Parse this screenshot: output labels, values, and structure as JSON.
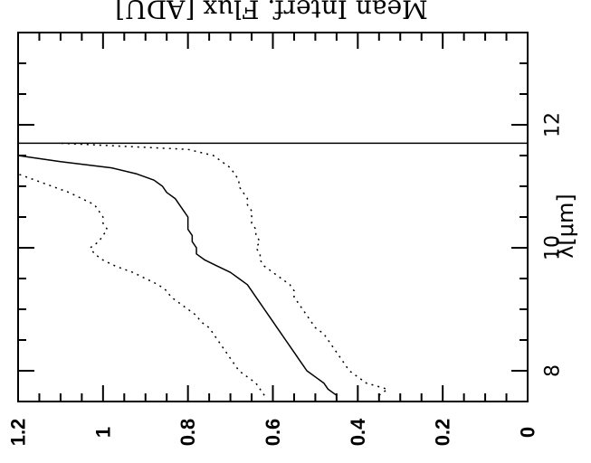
{
  "chart_data": {
    "type": "line",
    "title": "",
    "xlabel": "λ[μm]",
    "ylabel": "Mean Interf. Flux [ADU]",
    "xlim": [
      7.5,
      13.5
    ],
    "ylim": [
      0,
      1.2
    ],
    "x_ticks": [
      "8",
      "10",
      "12"
    ],
    "x_tick_values": [
      8,
      10,
      12
    ],
    "y_ticks": [
      "0",
      "0.2",
      "0.4",
      "0.6",
      "0.8",
      "1",
      "1.2"
    ],
    "y_tick_values": [
      0,
      0.2,
      0.4,
      0.6,
      0.8,
      1.0,
      1.2
    ],
    "grid": false,
    "orientation": "rotated 90 degrees clockwise",
    "vertical_line_x": 11.7,
    "series": [
      {
        "style": "solid",
        "points": [
          [
            7.6,
            0.45
          ],
          [
            7.7,
            0.47
          ],
          [
            7.8,
            0.48
          ],
          [
            7.9,
            0.5
          ],
          [
            8.0,
            0.52
          ],
          [
            8.1,
            0.53
          ],
          [
            8.2,
            0.54
          ],
          [
            8.3,
            0.55
          ],
          [
            8.4,
            0.56
          ],
          [
            8.5,
            0.57
          ],
          [
            8.6,
            0.58
          ],
          [
            8.7,
            0.59
          ],
          [
            8.8,
            0.6
          ],
          [
            8.9,
            0.61
          ],
          [
            9.0,
            0.62
          ],
          [
            9.1,
            0.63
          ],
          [
            9.2,
            0.64
          ],
          [
            9.3,
            0.65
          ],
          [
            9.4,
            0.66
          ],
          [
            9.5,
            0.68
          ],
          [
            9.6,
            0.7
          ],
          [
            9.7,
            0.73
          ],
          [
            9.8,
            0.76
          ],
          [
            9.9,
            0.78
          ],
          [
            10.0,
            0.78
          ],
          [
            10.1,
            0.79
          ],
          [
            10.2,
            0.79
          ],
          [
            10.3,
            0.8
          ],
          [
            10.4,
            0.8
          ],
          [
            10.5,
            0.8
          ],
          [
            10.6,
            0.81
          ],
          [
            10.7,
            0.82
          ],
          [
            10.8,
            0.83
          ],
          [
            10.9,
            0.85
          ],
          [
            11.0,
            0.86
          ],
          [
            11.1,
            0.88
          ],
          [
            11.2,
            0.92
          ],
          [
            11.3,
            0.98
          ],
          [
            11.4,
            1.1
          ],
          [
            11.5,
            1.2
          ]
        ]
      },
      {
        "style": "dotted",
        "points": [
          [
            7.6,
            0.35
          ],
          [
            7.7,
            0.33
          ],
          [
            7.8,
            0.38
          ],
          [
            7.9,
            0.4
          ],
          [
            8.0,
            0.42
          ],
          [
            8.1,
            0.43
          ],
          [
            8.2,
            0.44
          ],
          [
            8.3,
            0.45
          ],
          [
            8.4,
            0.46
          ],
          [
            8.5,
            0.47
          ],
          [
            8.6,
            0.48
          ],
          [
            8.7,
            0.5
          ],
          [
            8.8,
            0.51
          ],
          [
            8.9,
            0.52
          ],
          [
            9.0,
            0.53
          ],
          [
            9.1,
            0.54
          ],
          [
            9.2,
            0.55
          ],
          [
            9.3,
            0.55
          ],
          [
            9.4,
            0.56
          ],
          [
            9.5,
            0.58
          ],
          [
            9.6,
            0.6
          ],
          [
            9.7,
            0.62
          ],
          [
            9.8,
            0.63
          ],
          [
            9.9,
            0.63
          ],
          [
            10.0,
            0.64
          ],
          [
            10.1,
            0.63
          ],
          [
            10.2,
            0.64
          ],
          [
            10.3,
            0.64
          ],
          [
            10.4,
            0.65
          ],
          [
            10.5,
            0.65
          ],
          [
            10.6,
            0.65
          ],
          [
            10.7,
            0.66
          ],
          [
            10.8,
            0.66
          ],
          [
            10.9,
            0.67
          ],
          [
            11.0,
            0.68
          ],
          [
            11.1,
            0.68
          ],
          [
            11.2,
            0.69
          ],
          [
            11.3,
            0.7
          ],
          [
            11.4,
            0.72
          ],
          [
            11.5,
            0.74
          ],
          [
            11.6,
            0.8
          ],
          [
            11.7,
            1.1
          ]
        ]
      },
      {
        "style": "dotted",
        "points": [
          [
            7.6,
            0.62
          ],
          [
            7.7,
            0.63
          ],
          [
            7.8,
            0.64
          ],
          [
            7.9,
            0.66
          ],
          [
            8.0,
            0.68
          ],
          [
            8.1,
            0.69
          ],
          [
            8.2,
            0.7
          ],
          [
            8.3,
            0.71
          ],
          [
            8.4,
            0.72
          ],
          [
            8.5,
            0.73
          ],
          [
            8.6,
            0.74
          ],
          [
            8.7,
            0.75
          ],
          [
            8.8,
            0.77
          ],
          [
            8.9,
            0.78
          ],
          [
            9.0,
            0.8
          ],
          [
            9.1,
            0.82
          ],
          [
            9.2,
            0.84
          ],
          [
            9.3,
            0.85
          ],
          [
            9.4,
            0.87
          ],
          [
            9.5,
            0.9
          ],
          [
            9.6,
            0.93
          ],
          [
            9.7,
            0.97
          ],
          [
            9.8,
            1.0
          ],
          [
            9.9,
            1.02
          ],
          [
            10.0,
            1.03
          ],
          [
            10.1,
            1.01
          ],
          [
            10.2,
            1.0
          ],
          [
            10.3,
            0.99
          ],
          [
            10.4,
            1.0
          ],
          [
            10.5,
            1.0
          ],
          [
            10.6,
            1.01
          ],
          [
            10.7,
            1.02
          ],
          [
            10.8,
            1.05
          ],
          [
            10.9,
            1.08
          ],
          [
            11.0,
            1.12
          ],
          [
            11.1,
            1.16
          ],
          [
            11.2,
            1.2
          ]
        ]
      }
    ]
  }
}
